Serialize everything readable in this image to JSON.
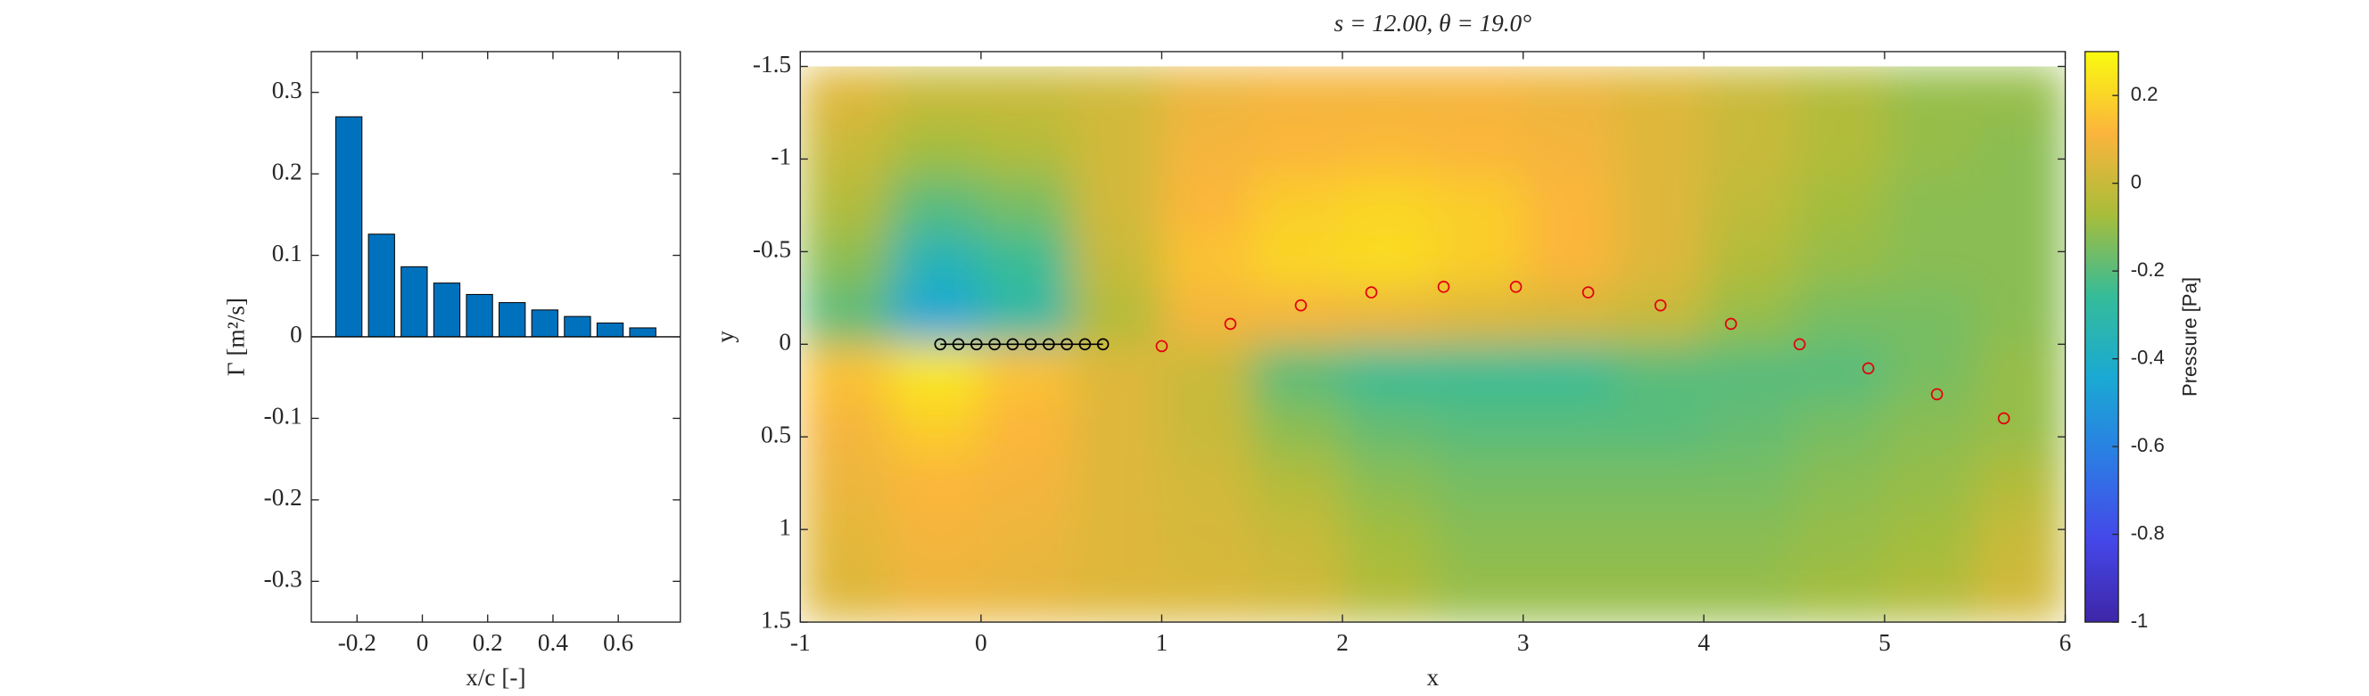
{
  "chart_data": [
    {
      "type": "bar",
      "xlabel": "x/c [-]",
      "ylabel": "Γ [m²/s]",
      "x": [
        -0.225,
        -0.125,
        -0.025,
        0.075,
        0.175,
        0.275,
        0.375,
        0.475,
        0.575,
        0.675
      ],
      "values": [
        0.27,
        0.126,
        0.086,
        0.066,
        0.052,
        0.042,
        0.033,
        0.025,
        0.017,
        0.011
      ],
      "color": "#0072bd",
      "xlim": [
        -0.34,
        0.79
      ],
      "xticks": [
        -0.2,
        0,
        0.2,
        0.4,
        0.6
      ],
      "ylim": [
        -0.35,
        0.35
      ],
      "yticks": [
        -0.3,
        -0.2,
        -0.1,
        0,
        0.1,
        0.2,
        0.3
      ]
    },
    {
      "type": "contour",
      "title": "s = 12.00, θ = 19.0°",
      "xlabel": "x",
      "ylabel": "y",
      "xlim": [
        -1,
        6
      ],
      "xticks": [
        -1,
        0,
        1,
        2,
        3,
        4,
        5,
        6
      ],
      "ylim": [
        -1.58,
        1.5
      ],
      "yticks": [
        -1.5,
        -1,
        -0.5,
        0,
        0.5,
        1,
        1.5
      ],
      "y_reversed": true,
      "field": {
        "x": [
          -0.75,
          -0.25,
          0.25,
          0.75,
          1.25,
          1.75,
          2.25,
          2.75,
          3.25,
          3.75,
          4.25,
          4.75,
          5.25,
          5.75
        ],
        "y": [
          -1.35,
          -1.05,
          -0.75,
          -0.45,
          -0.15,
          0.15,
          0.45,
          0.75,
          1.05,
          1.35
        ],
        "values": [
          [
            0.05,
            0.0,
            0.0,
            0.02,
            0.08,
            0.1,
            0.1,
            0.1,
            0.08,
            0.05,
            0.0,
            -0.05,
            -0.1,
            -0.1
          ],
          [
            0.0,
            -0.08,
            -0.05,
            0.02,
            0.1,
            0.12,
            0.13,
            0.12,
            0.1,
            0.05,
            0.0,
            -0.05,
            -0.1,
            -0.12
          ],
          [
            -0.05,
            -0.2,
            -0.15,
            0.02,
            0.12,
            0.18,
            0.2,
            0.18,
            0.12,
            0.05,
            -0.02,
            -0.08,
            -0.12,
            -0.12
          ],
          [
            -0.12,
            -0.35,
            -0.25,
            0.0,
            0.15,
            0.2,
            0.22,
            0.18,
            0.12,
            0.05,
            -0.05,
            -0.1,
            -0.12,
            -0.12
          ],
          [
            -0.2,
            -0.45,
            -0.3,
            -0.05,
            0.1,
            0.1,
            0.08,
            0.05,
            0.03,
            0.0,
            -0.1,
            -0.15,
            -0.15,
            -0.12
          ],
          [
            0.15,
            0.25,
            0.15,
            0.05,
            0.0,
            -0.2,
            -0.25,
            -0.25,
            -0.25,
            -0.2,
            -0.2,
            -0.2,
            -0.15,
            -0.1
          ],
          [
            0.1,
            0.18,
            0.12,
            0.05,
            0.0,
            -0.12,
            -0.18,
            -0.2,
            -0.2,
            -0.2,
            -0.18,
            -0.15,
            -0.12,
            -0.1
          ],
          [
            0.08,
            0.12,
            0.1,
            0.05,
            0.02,
            -0.05,
            -0.12,
            -0.15,
            -0.15,
            -0.15,
            -0.15,
            -0.12,
            -0.1,
            -0.05
          ],
          [
            0.06,
            0.1,
            0.08,
            0.05,
            0.03,
            0.0,
            -0.08,
            -0.12,
            -0.12,
            -0.12,
            -0.12,
            -0.1,
            -0.08,
            0.0
          ],
          [
            0.05,
            0.08,
            0.07,
            0.05,
            0.04,
            0.02,
            -0.05,
            -0.1,
            -0.1,
            -0.1,
            -0.1,
            -0.08,
            -0.05,
            0.02
          ]
        ]
      },
      "clim": [
        -1,
        0.3
      ],
      "colormap": [
        "#3e26a8",
        "#4547e8",
        "#2c7be4",
        "#1aa9d3",
        "#35bc99",
        "#a8bd3a",
        "#fbb43c",
        "#f9fb0e"
      ],
      "colorbar": {
        "label": "Pressure [Pa]",
        "ticks": [
          -1,
          -0.8,
          -0.6,
          -0.4,
          -0.2,
          0,
          0.2
        ]
      },
      "series": [
        {
          "type": "line",
          "color": "#000000",
          "x": [
            -0.225,
            -0.125,
            -0.025,
            0.075,
            0.175,
            0.275,
            0.375,
            0.475,
            0.575,
            0.675
          ],
          "y": [
            0,
            0,
            0,
            0,
            0,
            0,
            0,
            0,
            0,
            0
          ]
        },
        {
          "type": "scatter",
          "color": "#e3000b",
          "x": [
            1.0,
            1.38,
            1.77,
            2.16,
            2.56,
            2.96,
            3.36,
            3.76,
            4.15,
            4.53,
            4.91,
            5.29,
            5.66
          ],
          "y": [
            0.01,
            -0.11,
            -0.21,
            -0.28,
            -0.31,
            -0.31,
            -0.28,
            -0.21,
            -0.11,
            0.0,
            0.13,
            0.27,
            0.4
          ]
        }
      ]
    }
  ]
}
